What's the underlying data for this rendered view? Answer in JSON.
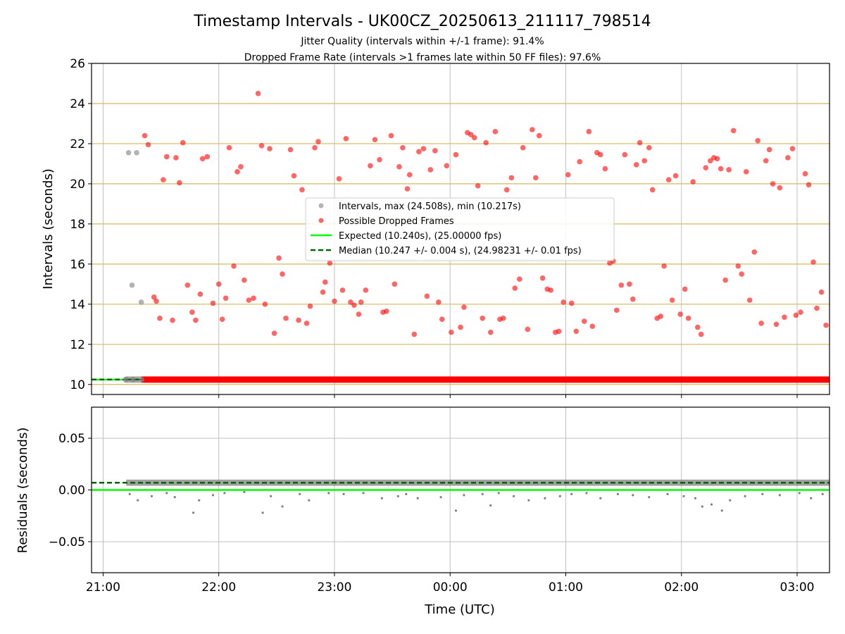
{
  "title": "Timestamp Intervals - UK00CZ_20250613_211117_798514",
  "subtitle_1": "Jitter Quality (intervals within +/-1 frame): 91.4%",
  "subtitle_2": "Dropped Frame Rate (intervals >1 frames late within 50 FF files): 97.6%",
  "colors": {
    "gray_points": "#808080",
    "dropped_points": "#ff0000",
    "expected_line": "#00ff00",
    "median_line": "#006400",
    "hgrid_top": "#d4b860",
    "grid": "#c0c0c0"
  },
  "chart_data": [
    {
      "type": "scatter",
      "name": "intervals",
      "ylabel": "Intervals (seconds)",
      "ylim": [
        9.5,
        26
      ],
      "yticks": [
        "10",
        "12",
        "14",
        "16",
        "18",
        "20",
        "22",
        "24",
        "26"
      ],
      "ytick_values": [
        10,
        12,
        14,
        16,
        18,
        20,
        22,
        24,
        26
      ],
      "xlim_hours": [
        20.9,
        27.28
      ],
      "grid": true,
      "legend_position": "center",
      "legend": [
        "Intervals, max (24.508s), min (10.217s)",
        "Possible Dropped Frames",
        "Expected (10.240s), (25.00000 fps)",
        "Median (10.247 +/- 0.004 s), (24.98231 +/- 0.01 fps)"
      ],
      "expected_interval": 10.24,
      "median_interval": 10.247,
      "baseline_gray_x": [
        21.2,
        21.33
      ],
      "baseline_dropped_x": [
        21.33,
        27.28
      ],
      "baseline_value": 10.24,
      "gray_points": [
        [
          21.22,
          21.55
        ],
        [
          21.29,
          21.55
        ],
        [
          21.25,
          14.95
        ],
        [
          21.33,
          14.1
        ],
        [
          21.2,
          10.25
        ],
        [
          21.26,
          10.25
        ]
      ],
      "dropped_points": [
        [
          21.36,
          22.4
        ],
        [
          21.39,
          21.95
        ],
        [
          21.44,
          14.35
        ],
        [
          21.46,
          14.15
        ],
        [
          21.49,
          13.3
        ],
        [
          21.52,
          20.2
        ],
        [
          21.55,
          21.35
        ],
        [
          21.6,
          13.2
        ],
        [
          21.63,
          21.3
        ],
        [
          21.66,
          20.05
        ],
        [
          21.69,
          22.05
        ],
        [
          21.73,
          14.95
        ],
        [
          21.77,
          13.6
        ],
        [
          21.8,
          13.2
        ],
        [
          21.84,
          14.5
        ],
        [
          21.86,
          21.25
        ],
        [
          21.9,
          21.35
        ],
        [
          21.95,
          14.05
        ],
        [
          22.0,
          15.0
        ],
        [
          22.03,
          13.25
        ],
        [
          22.06,
          14.3
        ],
        [
          22.09,
          21.8
        ],
        [
          22.13,
          15.9
        ],
        [
          22.16,
          20.6
        ],
        [
          22.19,
          20.85
        ],
        [
          22.22,
          15.2
        ],
        [
          22.26,
          14.2
        ],
        [
          22.3,
          14.3
        ],
        [
          22.34,
          24.5
        ],
        [
          22.37,
          21.9
        ],
        [
          22.4,
          14.0
        ],
        [
          22.44,
          21.75
        ],
        [
          22.48,
          12.55
        ],
        [
          22.52,
          16.3
        ],
        [
          22.55,
          15.5
        ],
        [
          22.58,
          13.3
        ],
        [
          22.62,
          21.7
        ],
        [
          22.65,
          20.4
        ],
        [
          22.69,
          13.2
        ],
        [
          22.72,
          19.7
        ],
        [
          22.76,
          13.05
        ],
        [
          22.79,
          13.9
        ],
        [
          22.83,
          21.8
        ],
        [
          22.86,
          22.1
        ],
        [
          22.9,
          14.6
        ],
        [
          22.92,
          15.1
        ],
        [
          22.96,
          16.05
        ],
        [
          23.0,
          14.15
        ],
        [
          23.04,
          20.25
        ],
        [
          23.07,
          14.7
        ],
        [
          23.1,
          22.25
        ],
        [
          23.14,
          14.1
        ],
        [
          23.17,
          13.95
        ],
        [
          23.21,
          13.5
        ],
        [
          23.23,
          14.1
        ],
        [
          23.27,
          14.7
        ],
        [
          23.31,
          20.9
        ],
        [
          23.35,
          22.2
        ],
        [
          23.39,
          21.2
        ],
        [
          23.42,
          13.6
        ],
        [
          23.45,
          13.65
        ],
        [
          23.49,
          22.4
        ],
        [
          23.52,
          15.0
        ],
        [
          23.56,
          20.85
        ],
        [
          23.59,
          21.8
        ],
        [
          23.63,
          19.75
        ],
        [
          23.65,
          20.45
        ],
        [
          23.69,
          12.5
        ],
        [
          23.73,
          21.6
        ],
        [
          23.77,
          21.75
        ],
        [
          23.8,
          14.4
        ],
        [
          23.83,
          20.7
        ],
        [
          23.87,
          21.65
        ],
        [
          23.9,
          14.1
        ],
        [
          23.93,
          13.25
        ],
        [
          23.97,
          20.9
        ],
        [
          24.01,
          12.6
        ],
        [
          24.05,
          21.45
        ],
        [
          24.09,
          12.85
        ],
        [
          24.12,
          13.85
        ],
        [
          24.15,
          22.55
        ],
        [
          24.18,
          22.45
        ],
        [
          24.21,
          22.3
        ],
        [
          24.24,
          19.9
        ],
        [
          24.28,
          13.3
        ],
        [
          24.31,
          22.05
        ],
        [
          24.35,
          12.6
        ],
        [
          24.39,
          22.6
        ],
        [
          24.43,
          13.25
        ],
        [
          24.46,
          13.3
        ],
        [
          24.49,
          19.7
        ],
        [
          24.53,
          20.3
        ],
        [
          24.56,
          14.8
        ],
        [
          24.6,
          15.25
        ],
        [
          24.63,
          21.8
        ],
        [
          24.67,
          12.75
        ],
        [
          24.71,
          22.7
        ],
        [
          24.74,
          20.3
        ],
        [
          24.77,
          22.4
        ],
        [
          24.8,
          15.3
        ],
        [
          24.84,
          14.75
        ],
        [
          24.87,
          14.7
        ],
        [
          24.91,
          12.6
        ],
        [
          24.94,
          12.65
        ],
        [
          24.98,
          14.1
        ],
        [
          25.02,
          20.45
        ],
        [
          25.05,
          14.05
        ],
        [
          25.09,
          12.65
        ],
        [
          25.12,
          21.1
        ],
        [
          25.16,
          13.15
        ],
        [
          25.2,
          22.6
        ],
        [
          25.23,
          12.9
        ],
        [
          25.27,
          21.55
        ],
        [
          25.3,
          21.45
        ],
        [
          25.34,
          20.75
        ],
        [
          25.38,
          16.05
        ],
        [
          25.41,
          16.15
        ],
        [
          25.44,
          13.7
        ],
        [
          25.48,
          14.95
        ],
        [
          25.51,
          21.45
        ],
        [
          25.55,
          15.0
        ],
        [
          25.58,
          14.25
        ],
        [
          25.61,
          20.95
        ],
        [
          25.64,
          22.05
        ],
        [
          25.68,
          21.15
        ],
        [
          25.72,
          21.8
        ],
        [
          25.75,
          19.7
        ],
        [
          25.79,
          13.3
        ],
        [
          25.82,
          13.4
        ],
        [
          25.85,
          15.9
        ],
        [
          25.89,
          20.2
        ],
        [
          25.92,
          14.2
        ],
        [
          25.95,
          20.4
        ],
        [
          25.99,
          13.5
        ],
        [
          26.03,
          14.75
        ],
        [
          26.06,
          13.3
        ],
        [
          26.1,
          20.1
        ],
        [
          26.14,
          12.85
        ],
        [
          26.17,
          12.5
        ],
        [
          26.21,
          20.8
        ],
        [
          26.25,
          21.15
        ],
        [
          26.28,
          21.3
        ],
        [
          26.31,
          21.25
        ],
        [
          26.34,
          20.75
        ],
        [
          26.38,
          15.2
        ],
        [
          26.41,
          20.7
        ],
        [
          26.45,
          22.65
        ],
        [
          26.49,
          15.9
        ],
        [
          26.52,
          15.5
        ],
        [
          26.56,
          20.6
        ],
        [
          26.59,
          14.2
        ],
        [
          26.63,
          16.6
        ],
        [
          26.66,
          22.15
        ],
        [
          26.69,
          13.05
        ],
        [
          26.73,
          21.15
        ],
        [
          26.76,
          21.7
        ],
        [
          26.79,
          20.0
        ],
        [
          26.82,
          13.0
        ],
        [
          26.85,
          19.8
        ],
        [
          26.89,
          13.35
        ],
        [
          26.92,
          21.3
        ],
        [
          26.96,
          21.75
        ],
        [
          26.99,
          13.45
        ],
        [
          27.03,
          13.6
        ],
        [
          27.07,
          20.5
        ],
        [
          27.1,
          19.95
        ],
        [
          27.14,
          16.1
        ],
        [
          27.17,
          13.8
        ],
        [
          27.21,
          14.6
        ],
        [
          27.25,
          12.95
        ]
      ]
    },
    {
      "type": "scatter",
      "name": "residuals",
      "ylabel": "Residuals (seconds)",
      "xlabel": "Time (UTC)",
      "ylim": [
        -0.08,
        0.08
      ],
      "yticks": [
        "−0.05",
        "0.00",
        "0.05"
      ],
      "ytick_values": [
        -0.05,
        0.0,
        0.05
      ],
      "xlim_hours": [
        20.9,
        27.28
      ],
      "xticks": [
        "21:00",
        "22:00",
        "23:00",
        "00:00",
        "01:00",
        "02:00",
        "03:00"
      ],
      "xtick_hours": [
        21,
        22,
        23,
        24,
        25,
        26,
        27
      ],
      "grid": true,
      "expected_residual": 0.0,
      "median_residual": 0.007,
      "band_range": [
        21.2,
        27.28
      ],
      "band_values": [
        0.004,
        0.01
      ],
      "outliers": [
        [
          21.23,
          -0.004
        ],
        [
          21.3,
          -0.01
        ],
        [
          21.42,
          -0.006
        ],
        [
          21.55,
          -0.003
        ],
        [
          21.62,
          -0.007
        ],
        [
          21.78,
          -0.022
        ],
        [
          21.83,
          -0.01
        ],
        [
          21.95,
          -0.005
        ],
        [
          22.05,
          -0.003
        ],
        [
          22.22,
          -0.002
        ],
        [
          22.38,
          -0.022
        ],
        [
          22.45,
          -0.006
        ],
        [
          22.55,
          -0.016
        ],
        [
          22.7,
          -0.004
        ],
        [
          22.78,
          -0.01
        ],
        [
          22.95,
          -0.003
        ],
        [
          23.08,
          -0.004
        ],
        [
          23.25,
          -0.003
        ],
        [
          23.41,
          -0.008
        ],
        [
          23.55,
          -0.006
        ],
        [
          23.62,
          -0.004
        ],
        [
          23.72,
          -0.008
        ],
        [
          23.92,
          -0.007
        ],
        [
          24.05,
          -0.02
        ],
        [
          24.12,
          -0.005
        ],
        [
          24.28,
          -0.004
        ],
        [
          24.35,
          -0.015
        ],
        [
          24.42,
          -0.003
        ],
        [
          24.55,
          -0.006
        ],
        [
          24.68,
          -0.01
        ],
        [
          24.82,
          -0.008
        ],
        [
          24.95,
          -0.006
        ],
        [
          25.05,
          -0.004
        ],
        [
          25.18,
          -0.003
        ],
        [
          25.3,
          -0.008
        ],
        [
          25.45,
          -0.004
        ],
        [
          25.58,
          -0.005
        ],
        [
          25.72,
          -0.007
        ],
        [
          25.88,
          -0.004
        ],
        [
          26.02,
          -0.006
        ],
        [
          26.12,
          -0.008
        ],
        [
          26.18,
          -0.016
        ],
        [
          26.26,
          -0.014
        ],
        [
          26.35,
          -0.02
        ],
        [
          26.42,
          -0.01
        ],
        [
          26.55,
          -0.006
        ],
        [
          26.7,
          -0.004
        ],
        [
          26.85,
          -0.005
        ],
        [
          27.02,
          -0.003
        ],
        [
          27.12,
          -0.008
        ],
        [
          27.22,
          -0.004
        ]
      ]
    }
  ]
}
